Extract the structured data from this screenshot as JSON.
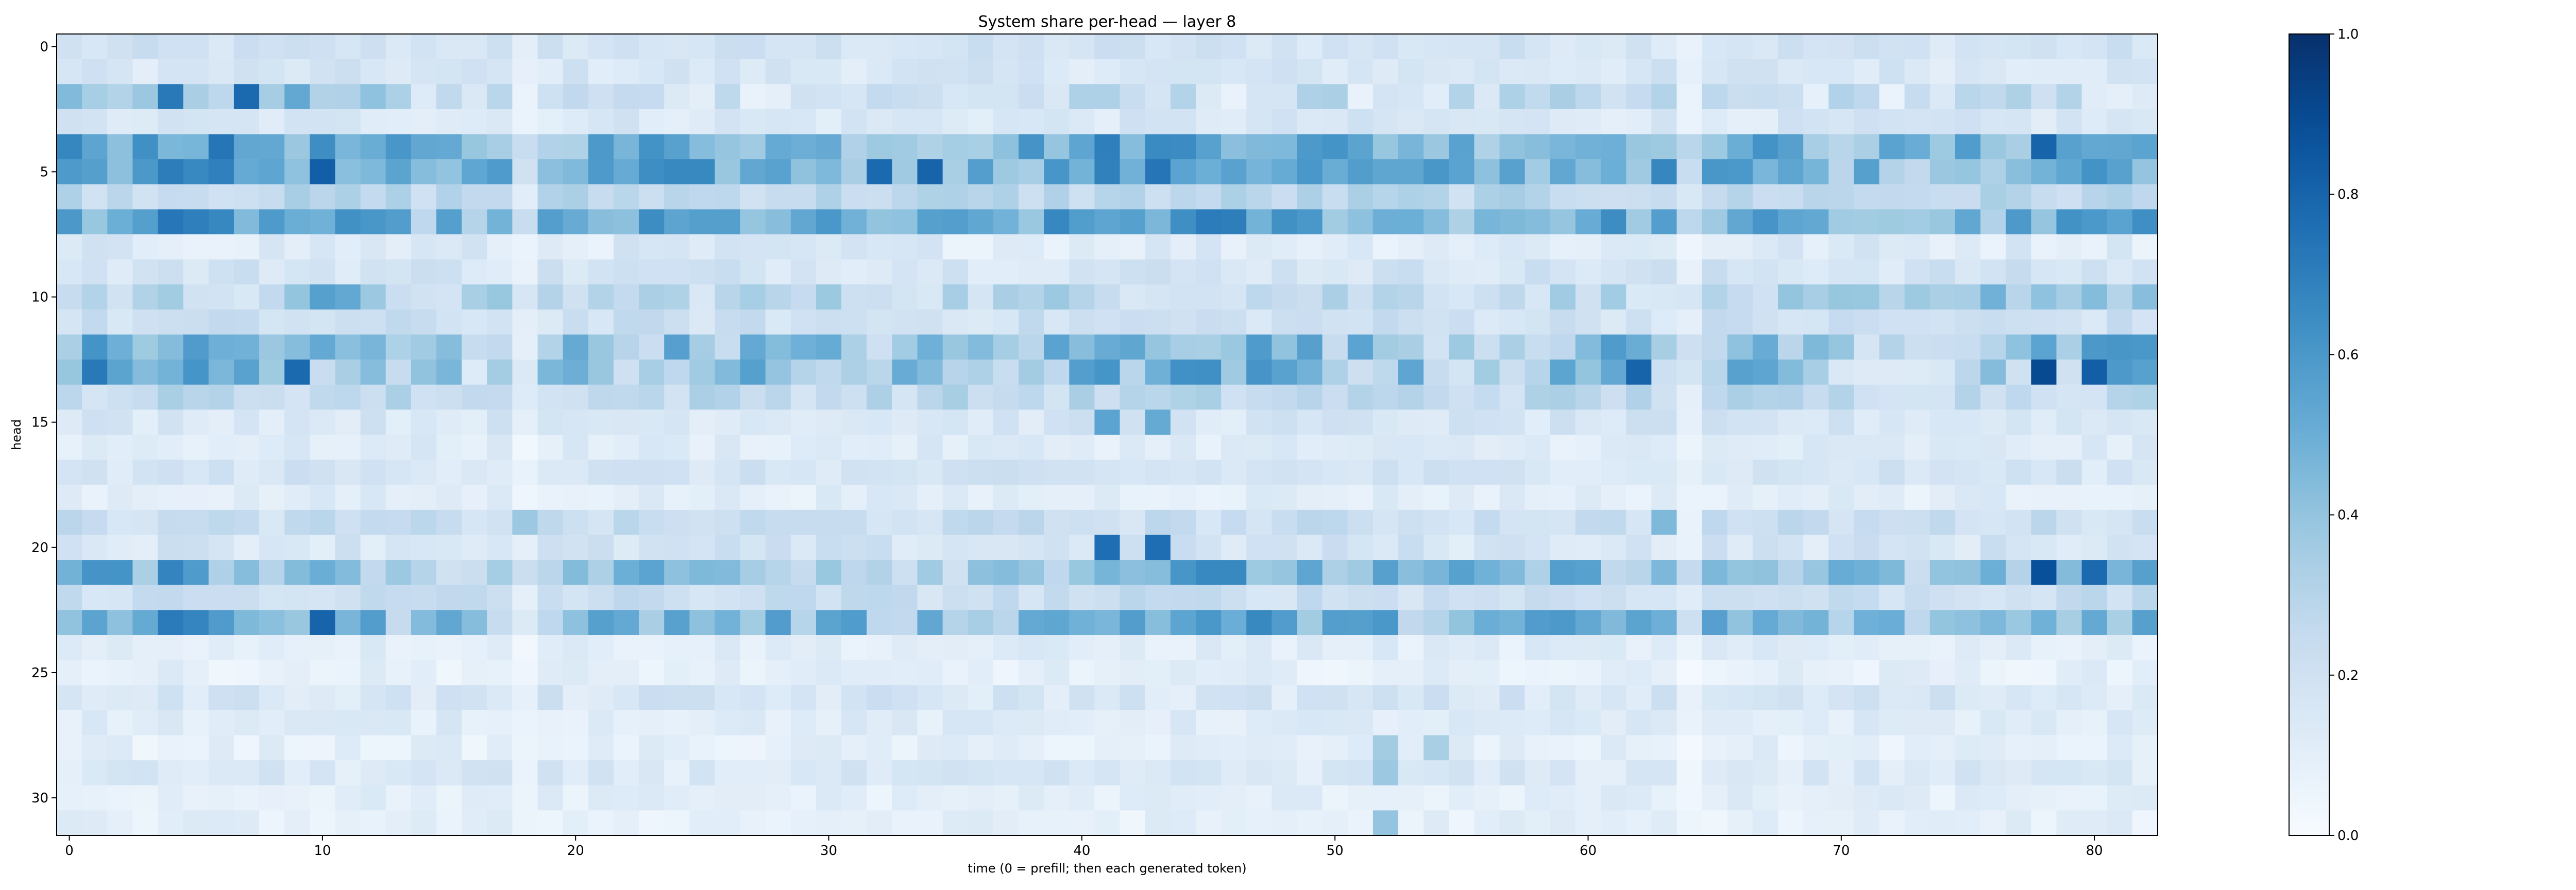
{
  "chart_data": {
    "type": "heatmap",
    "title": "System share per-head — layer 8",
    "xlabel": "time (0 = prefill; then each generated token)",
    "ylabel": "head",
    "x_ticks": [
      0,
      10,
      20,
      30,
      40,
      50,
      60,
      70,
      80
    ],
    "y_ticks": [
      0,
      5,
      10,
      15,
      20,
      25,
      30
    ],
    "xlim": [
      -0.5,
      82.5
    ],
    "ylim": [
      31.5,
      -0.5
    ],
    "colormap": "Blues",
    "colorbar": {
      "vmin": 0.0,
      "vmax": 1.0,
      "ticks": [
        "0.0",
        "0.2",
        "0.4",
        "0.6",
        "0.8",
        "1.0"
      ]
    },
    "colors": {
      "low": "#f7fbff",
      "high": "#08306b"
    },
    "n_time_steps": 83,
    "n_heads": 32,
    "row_profiles": [
      {
        "head": 0,
        "base": 0.18,
        "amp": 0.06,
        "pattern": "diffuse"
      },
      {
        "head": 1,
        "base": 0.16,
        "amp": 0.06,
        "pattern": "diffuse"
      },
      {
        "head": 2,
        "base": 0.24,
        "amp": 0.14,
        "pattern": "early"
      },
      {
        "head": 3,
        "base": 0.15,
        "amp": 0.06,
        "pattern": "diffuse"
      },
      {
        "head": 4,
        "base": 0.5,
        "amp": 0.16,
        "pattern": "strong"
      },
      {
        "head": 5,
        "base": 0.5,
        "amp": 0.16,
        "pattern": "strong"
      },
      {
        "head": 6,
        "base": 0.27,
        "amp": 0.08,
        "pattern": "diffuse"
      },
      {
        "head": 7,
        "base": 0.49,
        "amp": 0.16,
        "pattern": "strong"
      },
      {
        "head": 8,
        "base": 0.13,
        "amp": 0.07,
        "pattern": "diffuse"
      },
      {
        "head": 9,
        "base": 0.18,
        "amp": 0.07,
        "pattern": "diffuse"
      },
      {
        "head": 10,
        "base": 0.27,
        "amp": 0.13,
        "pattern": "right"
      },
      {
        "head": 11,
        "base": 0.2,
        "amp": 0.07,
        "pattern": "diffuse"
      },
      {
        "head": 12,
        "base": 0.4,
        "amp": 0.18,
        "pattern": "strong"
      },
      {
        "head": 13,
        "base": 0.38,
        "amp": 0.2,
        "pattern": "strong"
      },
      {
        "head": 14,
        "base": 0.26,
        "amp": 0.09,
        "pattern": "diffuse"
      },
      {
        "head": 15,
        "base": 0.16,
        "amp": 0.06,
        "pattern": "diffuse"
      },
      {
        "head": 16,
        "base": 0.12,
        "amp": 0.05,
        "pattern": "diffuse"
      },
      {
        "head": 17,
        "base": 0.17,
        "amp": 0.06,
        "pattern": "diffuse"
      },
      {
        "head": 18,
        "base": 0.11,
        "amp": 0.05,
        "pattern": "diffuse"
      },
      {
        "head": 19,
        "base": 0.22,
        "amp": 0.07,
        "pattern": "diffuse"
      },
      {
        "head": 20,
        "base": 0.17,
        "amp": 0.07,
        "pattern": "diffuse"
      },
      {
        "head": 21,
        "base": 0.42,
        "amp": 0.18,
        "pattern": "strong"
      },
      {
        "head": 22,
        "base": 0.22,
        "amp": 0.07,
        "pattern": "diffuse"
      },
      {
        "head": 23,
        "base": 0.46,
        "amp": 0.17,
        "pattern": "strong"
      },
      {
        "head": 24,
        "base": 0.11,
        "amp": 0.05,
        "pattern": "diffuse"
      },
      {
        "head": 25,
        "base": 0.09,
        "amp": 0.05,
        "pattern": "diffuse"
      },
      {
        "head": 26,
        "base": 0.16,
        "amp": 0.07,
        "pattern": "diffuse"
      },
      {
        "head": 27,
        "base": 0.12,
        "amp": 0.05,
        "pattern": "diffuse"
      },
      {
        "head": 28,
        "base": 0.09,
        "amp": 0.05,
        "pattern": "diffuse"
      },
      {
        "head": 29,
        "base": 0.14,
        "amp": 0.06,
        "pattern": "diffuse"
      },
      {
        "head": 30,
        "base": 0.1,
        "amp": 0.05,
        "pattern": "diffuse"
      },
      {
        "head": 31,
        "base": 0.09,
        "amp": 0.05,
        "pattern": "diffuse"
      }
    ],
    "hotspots": [
      {
        "head": 2,
        "t": 4,
        "value": 0.72
      },
      {
        "head": 2,
        "t": 7,
        "value": 0.78
      },
      {
        "head": 5,
        "t": 10,
        "value": 0.82
      },
      {
        "head": 5,
        "t": 32,
        "value": 0.78
      },
      {
        "head": 5,
        "t": 34,
        "value": 0.8
      },
      {
        "head": 4,
        "t": 78,
        "value": 0.8
      },
      {
        "head": 13,
        "t": 1,
        "value": 0.72
      },
      {
        "head": 13,
        "t": 9,
        "value": 0.78
      },
      {
        "head": 13,
        "t": 62,
        "value": 0.8
      },
      {
        "head": 13,
        "t": 78,
        "value": 0.9
      },
      {
        "head": 13,
        "t": 80,
        "value": 0.82
      },
      {
        "head": 20,
        "t": 41,
        "value": 0.76
      },
      {
        "head": 20,
        "t": 43,
        "value": 0.76
      },
      {
        "head": 21,
        "t": 78,
        "value": 0.88
      },
      {
        "head": 21,
        "t": 80,
        "value": 0.78
      },
      {
        "head": 23,
        "t": 10,
        "value": 0.8
      },
      {
        "head": 15,
        "t": 41,
        "value": 0.55
      },
      {
        "head": 15,
        "t": 43,
        "value": 0.52
      },
      {
        "head": 29,
        "t": 52,
        "value": 0.38
      },
      {
        "head": 31,
        "t": 52,
        "value": 0.4
      },
      {
        "head": 28,
        "t": 52,
        "value": 0.36
      },
      {
        "head": 28,
        "t": 54,
        "value": 0.34
      },
      {
        "head": 19,
        "t": 18,
        "value": 0.38
      },
      {
        "head": 19,
        "t": 63,
        "value": 0.45
      }
    ],
    "dim_columns": [
      18,
      64
    ]
  }
}
